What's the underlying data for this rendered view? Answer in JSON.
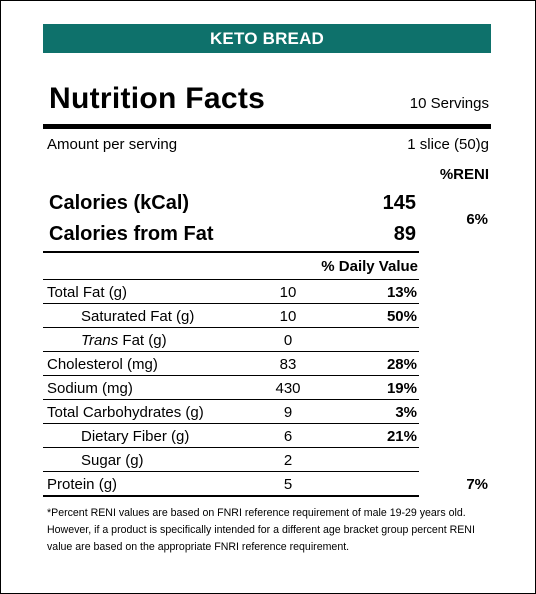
{
  "banner": "KETO BREAD",
  "title": "Nutrition Facts",
  "servings": "10 Servings",
  "amount_per_serving": "Amount per serving",
  "serving_size": "1 slice (50)g",
  "reni_header": "%RENI",
  "calories": {
    "label": "Calories (kCal)",
    "value": "145"
  },
  "calories_fat": {
    "label": "Calories from Fat",
    "value": "89"
  },
  "calories_reni": "6%",
  "daily_value_header": "% Daily Value",
  "nutrients": [
    {
      "name": "Total Fat (g)",
      "amount": "10",
      "dv": "13%"
    },
    {
      "name": "Saturated Fat (g)",
      "amount": "10",
      "dv": "50%"
    },
    {
      "name_italic": "Trans",
      "name": " Fat (g)",
      "amount": "0",
      "dv": ""
    },
    {
      "name": "Cholesterol (mg)",
      "amount": "83",
      "dv": "28%"
    },
    {
      "name": "Sodium (mg)",
      "amount": "430",
      "dv": "19%"
    },
    {
      "name": "Total Carbohydrates (g)",
      "amount": "9",
      "dv": "3%"
    },
    {
      "name": "Dietary Fiber (g)",
      "amount": "6",
      "dv": "21%"
    },
    {
      "name": "Sugar (g)",
      "amount": "2",
      "dv": ""
    },
    {
      "name": "Protein (g)",
      "amount": "5",
      "dv": ""
    }
  ],
  "protein_reni": "7%",
  "footnote": "*Percent RENI values are based on FNRI reference requirement of male 19-29 years old. However, if a product is specifically intended for a different age bracket group percent RENI value are based on the appropriate FNRI reference requirement."
}
